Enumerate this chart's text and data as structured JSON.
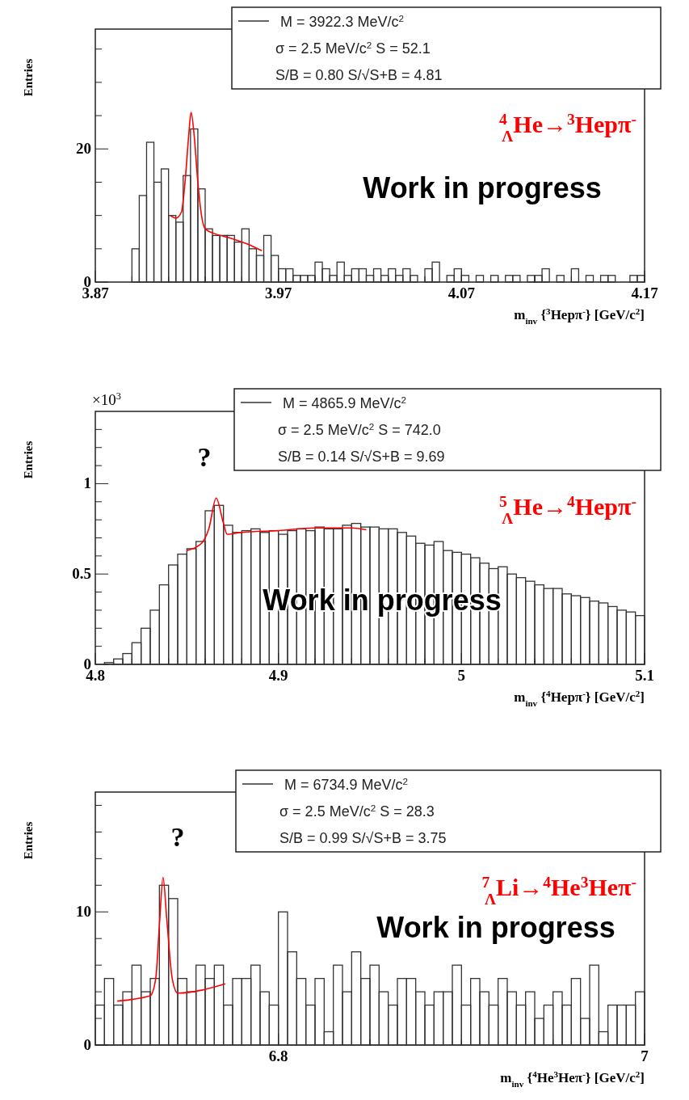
{
  "chart_data": [
    {
      "type": "histogram",
      "ylabel": "Entries",
      "xlabel": "m$_{inv}$ {$^{3}$Hepπ$^{-}$} [GeV/c$^{2}$]",
      "title": "$^{4}$$_{Λ}$He→$^{3}$Hepπ$^{-}$",
      "annotations": [
        "M = 3922.3 MeV/c$^{2}$",
        "σ = 2.5 MeV/c$^{2}$  S = 52.1",
        "S/B = 0.80  S/√S+B = 4.81",
        "Work in progress"
      ],
      "xlim": [
        3.87,
        4.17
      ],
      "ylim": [
        0,
        38
      ],
      "xticks": [
        3.87,
        {
          "value": 3.89,
          "label": null
        },
        {
          "value": 3.91,
          "label": null
        },
        {
          "value": 3.93,
          "label": null
        },
        {
          "value": 3.95,
          "label": null
        },
        3.97,
        {
          "value": 3.99,
          "label": null
        },
        {
          "value": 4.01,
          "label": null
        },
        {
          "value": 4.03,
          "label": null
        },
        {
          "value": 4.05,
          "label": null
        },
        4.07,
        {
          "value": 4.09,
          "label": null
        },
        {
          "value": 4.11,
          "label": null
        },
        {
          "value": 4.13,
          "label": null
        },
        {
          "value": 4.15,
          "label": null
        },
        4.17
      ],
      "yticks": [
        0,
        {
          "value": 5,
          "label": null
        },
        {
          "value": 10,
          "label": null
        },
        {
          "value": 15,
          "label": null
        },
        20,
        {
          "value": 25,
          "label": null
        },
        {
          "value": 30,
          "label": null
        },
        {
          "value": 35,
          "label": null
        }
      ],
      "series": [
        {
          "type": "histogram",
          "color": "#333333",
          "bins": [
            3.89,
            3.894,
            3.898,
            3.902,
            3.906,
            3.91,
            3.914,
            3.918,
            3.922,
            3.926,
            3.93,
            3.934,
            3.938,
            3.942,
            3.946,
            3.95,
            3.954,
            3.958,
            3.962,
            3.966,
            3.97,
            3.974,
            3.978,
            3.982,
            3.986,
            3.99,
            3.994,
            3.998,
            4.002,
            4.006,
            4.01,
            4.014,
            4.018,
            4.022,
            4.026,
            4.03,
            4.034,
            4.038,
            4.042,
            4.046,
            4.05,
            4.054,
            4.058,
            4.062,
            4.066,
            4.07,
            4.074,
            4.078,
            4.082,
            4.086,
            4.09,
            4.094,
            4.098,
            4.102,
            4.106,
            4.11,
            4.114,
            4.118,
            4.122,
            4.126,
            4.13,
            4.134,
            4.138,
            4.142,
            4.146,
            4.15,
            4.154,
            4.158,
            4.162,
            4.166,
            4.17
          ],
          "values": [
            5,
            13,
            21,
            15,
            17,
            10,
            9,
            16,
            23,
            14,
            8,
            7,
            7,
            7,
            6,
            8,
            5,
            4,
            7,
            4,
            2,
            2,
            1,
            1,
            1,
            3,
            2,
            1,
            3,
            1,
            2,
            2,
            1,
            2,
            1,
            2,
            1,
            2,
            1,
            0,
            2,
            3,
            0,
            1,
            2,
            1,
            0,
            1,
            0,
            1,
            0,
            1,
            1,
            0,
            1,
            1,
            2,
            0,
            1,
            0,
            2,
            0,
            1,
            0,
            1,
            1,
            0,
            0,
            1,
            1
          ]
        },
        {
          "type": "line",
          "color": "#ff0000",
          "x": [
            3.911,
            3.914,
            3.917,
            3.919,
            3.921,
            3.9223,
            3.924,
            3.926,
            3.928,
            3.93,
            3.935,
            3.945,
            3.955,
            3.961
          ],
          "values": [
            10,
            9.6,
            10.5,
            15,
            22,
            25.5,
            22,
            15,
            10,
            8,
            7.3,
            6.5,
            5.5,
            4.7
          ]
        }
      ]
    },
    {
      "type": "histogram",
      "ylabel": "Entries",
      "xlabel": "m$_{inv}$ {$^{4}$Hepπ$^{-}$} [GeV/c$^{2}$]",
      "title": "$^{5}$$_{Λ}$He→$^{4}$Hepπ$^{-}$",
      "annotations": [
        "M = 4865.9 MeV/c$^{2}$",
        "σ = 2.5 MeV/c$^{2}$  S = 742.0",
        "S/B = 0.14  S/√S+B = 9.69",
        "Work in progress",
        "?",
        "×10$^{3}$"
      ],
      "xlim": [
        4.8,
        5.1
      ],
      "ylim": [
        0,
        1.4
      ],
      "xticks": [
        4.8,
        {
          "value": 4.82,
          "label": null
        },
        {
          "value": 4.84,
          "label": null
        },
        {
          "value": 4.86,
          "label": null
        },
        {
          "value": 4.88,
          "label": null
        },
        4.9,
        {
          "value": 4.92,
          "label": null
        },
        {
          "value": 4.94,
          "label": null
        },
        {
          "value": 4.96,
          "label": null
        },
        {
          "value": 4.98,
          "label": null
        },
        5,
        {
          "value": 5.02,
          "label": null
        },
        {
          "value": 5.04,
          "label": null
        },
        {
          "value": 5.06,
          "label": null
        },
        {
          "value": 5.08,
          "label": null
        },
        5.1
      ],
      "yticks": [
        0,
        {
          "value": 0.1,
          "label": null
        },
        {
          "value": 0.2,
          "label": null
        },
        {
          "value": 0.3,
          "label": null
        },
        {
          "value": 0.4,
          "label": null
        },
        0.5,
        {
          "value": 0.6,
          "label": null
        },
        {
          "value": 0.7,
          "label": null
        },
        {
          "value": 0.8,
          "label": null
        },
        {
          "value": 0.9,
          "label": null
        },
        1,
        {
          "value": 1.1,
          "label": null
        },
        {
          "value": 1.2,
          "label": null
        },
        {
          "value": 1.3,
          "label": null
        }
      ],
      "series": [
        {
          "type": "histogram",
          "color": "#333333",
          "bins": [
            4.8,
            4.805,
            4.81,
            4.815,
            4.82,
            4.825,
            4.83,
            4.835,
            4.84,
            4.845,
            4.85,
            4.855,
            4.86,
            4.865,
            4.87,
            4.875,
            4.88,
            4.885,
            4.89,
            4.895,
            4.9,
            4.905,
            4.91,
            4.915,
            4.92,
            4.925,
            4.93,
            4.935,
            4.94,
            4.945,
            4.95,
            4.955,
            4.96,
            4.965,
            4.97,
            4.975,
            4.98,
            4.985,
            4.99,
            4.995,
            5,
            5.005,
            5.01,
            5.015,
            5.02,
            5.025,
            5.03,
            5.035,
            5.04,
            5.045,
            5.05,
            5.055,
            5.06,
            5.065,
            5.07,
            5.075,
            5.08,
            5.085,
            5.09,
            5.095,
            5.1
          ],
          "values": [
            0,
            0.01,
            0.03,
            0.06,
            0.12,
            0.2,
            0.3,
            0.44,
            0.55,
            0.61,
            0.64,
            0.68,
            0.85,
            0.88,
            0.77,
            0.73,
            0.74,
            0.75,
            0.73,
            0.74,
            0.72,
            0.74,
            0.75,
            0.74,
            0.76,
            0.75,
            0.75,
            0.77,
            0.78,
            0.76,
            0.76,
            0.75,
            0.75,
            0.73,
            0.71,
            0.67,
            0.66,
            0.68,
            0.63,
            0.62,
            0.61,
            0.59,
            0.56,
            0.53,
            0.54,
            0.5,
            0.48,
            0.46,
            0.44,
            0.42,
            0.42,
            0.39,
            0.38,
            0.37,
            0.35,
            0.34,
            0.32,
            0.3,
            0.29,
            0.27
          ]
        },
        {
          "type": "line",
          "color": "#ff0000",
          "x": [
            4.85,
            4.858,
            4.862,
            4.866,
            4.87,
            4.872,
            4.88,
            4.9,
            4.92,
            4.94,
            4.948
          ],
          "values": [
            0.63,
            0.67,
            0.75,
            0.92,
            0.78,
            0.72,
            0.73,
            0.74,
            0.755,
            0.755,
            0.745
          ]
        }
      ]
    },
    {
      "type": "histogram",
      "ylabel": "Entries",
      "xlabel": "m$_{inv}$ {$^{4}$He$^{3}$Heπ$^{-}$} [GeV/c$^{2}$]",
      "title": "$^{7}$$_{Λ}$Li→$^{4}$He$^{3}$Heπ$^{-}$",
      "annotations": [
        "M = 6734.9 MeV/c$^{2}$",
        "σ = 2.5 MeV/c$^{2}$  S = 28.3",
        "S/B = 0.99  S/√S+B = 3.75",
        "Work in progress",
        "?"
      ],
      "xlim": [
        6.7,
        7
      ],
      "ylim": [
        0,
        19
      ],
      "xticks": [
        {
          "value": 6.75,
          "label": null
        },
        6.8,
        {
          "value": 6.85,
          "label": null
        },
        {
          "value": 6.9,
          "label": null
        },
        {
          "value": 6.95,
          "label": null
        },
        7
      ],
      "yticks": [
        0,
        {
          "value": 2,
          "label": null
        },
        {
          "value": 4,
          "label": null
        },
        {
          "value": 6,
          "label": null
        },
        {
          "value": 8,
          "label": null
        },
        10,
        {
          "value": 12,
          "label": null
        },
        {
          "value": 14,
          "label": null
        },
        {
          "value": 16,
          "label": null
        },
        {
          "value": 18,
          "label": null
        }
      ],
      "series": [
        {
          "type": "histogram",
          "color": "#333333",
          "bins": [
            6.7,
            6.705,
            6.71,
            6.715,
            6.72,
            6.725,
            6.73,
            6.735,
            6.74,
            6.745,
            6.75,
            6.755,
            6.76,
            6.765,
            6.77,
            6.775,
            6.78,
            6.785,
            6.79,
            6.795,
            6.8,
            6.805,
            6.81,
            6.815,
            6.82,
            6.825,
            6.83,
            6.835,
            6.84,
            6.845,
            6.85,
            6.855,
            6.86,
            6.865,
            6.87,
            6.875,
            6.88,
            6.885,
            6.89,
            6.895,
            6.9,
            6.905,
            6.91,
            6.915,
            6.92,
            6.925,
            6.93,
            6.935,
            6.94,
            6.945,
            6.95,
            6.955,
            6.96,
            6.965,
            6.97,
            6.975,
            6.98,
            6.985,
            6.99,
            6.995,
            7
          ],
          "values": [
            3,
            5,
            3,
            4,
            6,
            4,
            5,
            12,
            11,
            5,
            4,
            6,
            5,
            6,
            3,
            5,
            5,
            6,
            4,
            3,
            10,
            7,
            5,
            3,
            5,
            1,
            6,
            4,
            7,
            5,
            6,
            4,
            3,
            5,
            5,
            4,
            3,
            4,
            4,
            6,
            3,
            5,
            4,
            3,
            5,
            4,
            3,
            4,
            2,
            3,
            4,
            3,
            5,
            2,
            6,
            1,
            3,
            3,
            3,
            4
          ]
        },
        {
          "type": "line",
          "color": "#ff0000",
          "x": [
            6.712,
            6.73,
            6.733,
            6.735,
            6.737,
            6.739,
            6.742,
            6.745,
            6.771
          ],
          "values": [
            3.3,
            3.7,
            5,
            9,
            12.6,
            9.5,
            5,
            3.9,
            4.6
          ]
        }
      ]
    }
  ]
}
